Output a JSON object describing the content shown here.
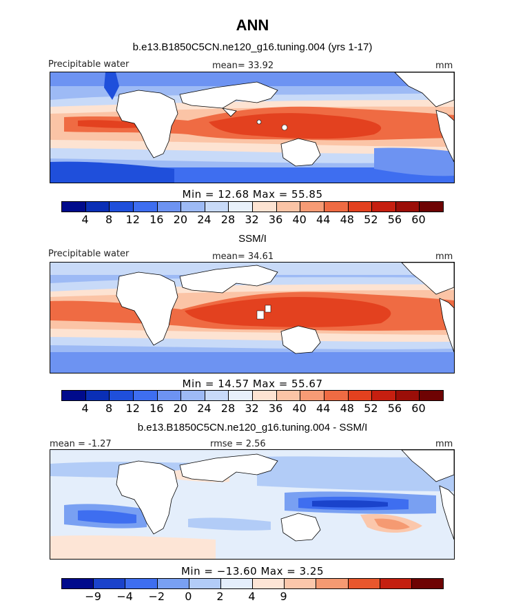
{
  "title": "ANN",
  "panels": [
    {
      "subtitle": "b.e13.B1850C5CN.ne120_g16.tuning.004 (yrs 1-17)",
      "left_label": "Precipitable water",
      "center_label": "mean=  33.92",
      "units": "mm",
      "minmax": "Min =  12.68  Max =  55.85"
    },
    {
      "subtitle": "SSM/I",
      "left_label": "Precipitable water",
      "center_label": "mean=  34.61",
      "units": "mm",
      "minmax": "Min =  14.57  Max =  55.67"
    },
    {
      "subtitle": "b.e13.B1850C5CN.ne120_g16.tuning.004 - SSM/I",
      "left_label": "mean =  -1.27",
      "center_label": "rmse =  2.56",
      "units": "mm",
      "minmax": "Min = −13.60  Max =   3.25"
    }
  ],
  "colorbar_abs": {
    "colors": [
      "#000b8c",
      "#0a2fb6",
      "#1f4fdb",
      "#3e6ef0",
      "#6d93f2",
      "#9dbaf5",
      "#c8daf8",
      "#e9f1fb",
      "#fde3d2",
      "#fbc4a6",
      "#f79b75",
      "#ef6b43",
      "#e3411f",
      "#c61f10",
      "#9b0e08",
      "#6e0303"
    ],
    "ticks": [
      "4",
      "8",
      "12",
      "16",
      "20",
      "24",
      "28",
      "32",
      "36",
      "40",
      "44",
      "48",
      "52",
      "56",
      "60"
    ]
  },
  "colorbar_diff": {
    "colors": [
      "#000b8c",
      "#1a43cb",
      "#3e6ef0",
      "#79a0f2",
      "#b2ccf7",
      "#e4eefb",
      "#fde5d6",
      "#fbc7ab",
      "#f59a72",
      "#e8572d",
      "#c41f10",
      "#6e0303"
    ],
    "ticks": [
      "−9",
      "−4",
      "−2",
      "0",
      "2",
      "4",
      "9"
    ]
  },
  "map_colors": {
    "warm_strong": "#e3411f",
    "warm_mid": "#ef6b43",
    "warm_light": "#fbc4a6",
    "cool_light": "#c8daf8",
    "cool_mid": "#6d93f2",
    "cool_strong": "#1f4fdb",
    "land": "#ffffff"
  }
}
